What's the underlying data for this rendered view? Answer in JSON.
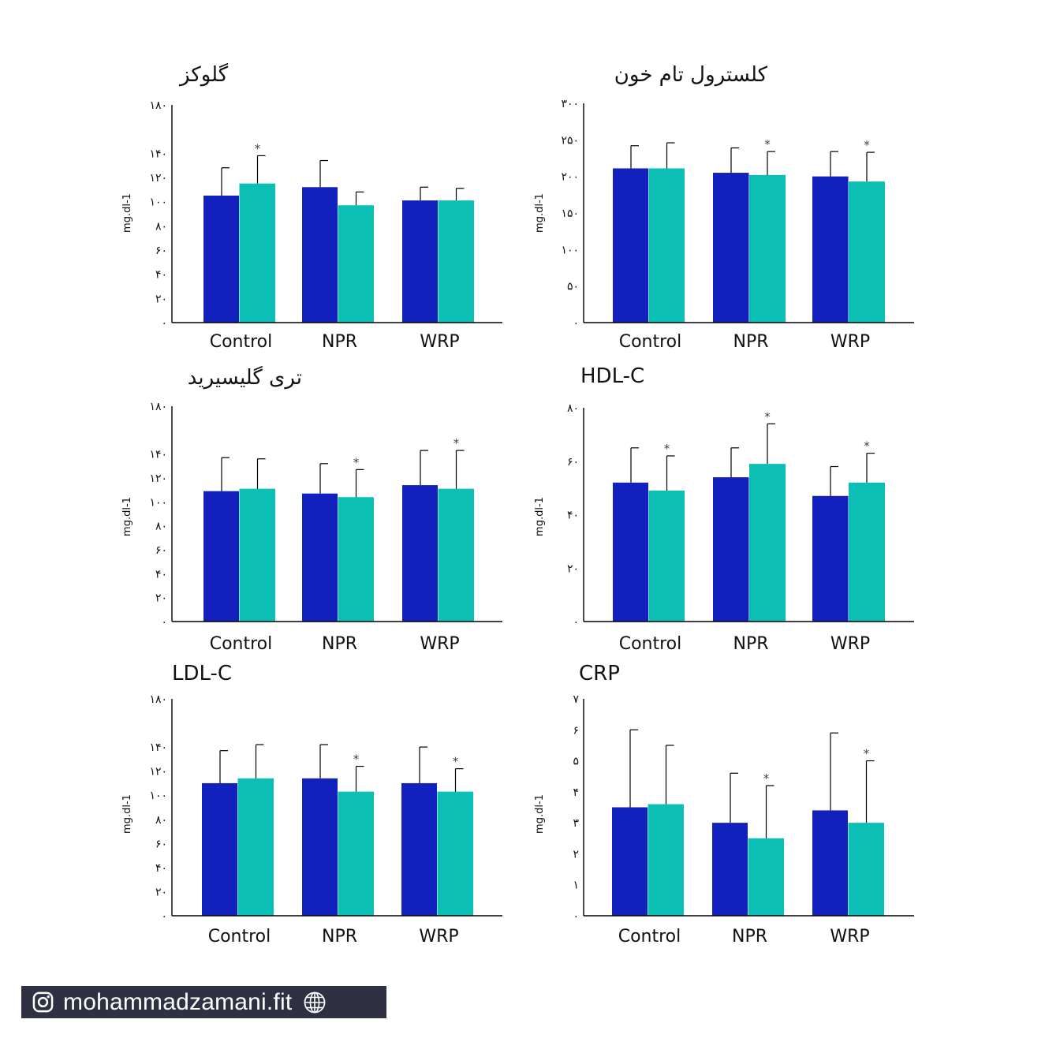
{
  "colors": {
    "pre": "#1220bd",
    "post": "#0bbfb4",
    "axis": "#000000",
    "errorbar": "#000000"
  },
  "chart_data": [
    {
      "type": "bar",
      "title": "گلوکز",
      "ylabel": "mg.dl-1",
      "categories": [
        "Control",
        "NPR",
        "WRP"
      ],
      "ylim": [
        0,
        180
      ],
      "yticks": [
        0,
        20,
        40,
        60,
        80,
        100,
        120,
        140,
        180
      ],
      "ytick_labels": [
        "۰",
        "۲۰",
        "۴۰",
        "۶۰",
        "۸۰",
        "۱۰۰",
        "۱۲۰",
        "۱۴۰",
        "۱۸۰"
      ],
      "series": [
        {
          "values": [
            105,
            112,
            101
          ],
          "errors": [
            23,
            22,
            11
          ],
          "significant": [
            false,
            false,
            false
          ]
        },
        {
          "values": [
            115,
            97,
            101
          ],
          "errors": [
            23,
            11,
            10
          ],
          "significant": [
            true,
            false,
            false
          ]
        }
      ]
    },
    {
      "type": "bar",
      "title": "کلسترول تام خون",
      "ylabel": "mg.dl-1",
      "categories": [
        "Control",
        "NPR",
        "WRP"
      ],
      "ylim": [
        0,
        300
      ],
      "yticks": [
        0,
        50,
        100,
        150,
        200,
        250,
        300
      ],
      "ytick_labels": [
        "۰",
        "۵۰",
        "۱۰۰",
        "۱۵۰",
        "۲۰۰",
        "۲۵۰",
        "۳۰۰"
      ],
      "series": [
        {
          "values": [
            211,
            205,
            200
          ],
          "errors": [
            31,
            34,
            34
          ],
          "significant": [
            false,
            false,
            false
          ]
        },
        {
          "values": [
            211,
            202,
            193
          ],
          "errors": [
            35,
            32,
            40
          ],
          "significant": [
            false,
            true,
            true
          ]
        }
      ]
    },
    {
      "type": "bar",
      "title": "تری گلیسیرید",
      "ylabel": "mg.dl-1",
      "categories": [
        "Control",
        "NPR",
        "WRP"
      ],
      "ylim": [
        0,
        180
      ],
      "yticks": [
        0,
        20,
        40,
        60,
        80,
        100,
        120,
        140,
        180
      ],
      "ytick_labels": [
        "۰",
        "۲۰",
        "۴۰",
        "۶۰",
        "۸۰",
        "۱۰۰",
        "۱۲۰",
        "۱۴۰",
        "۱۸۰"
      ],
      "series": [
        {
          "values": [
            109,
            107,
            114
          ],
          "errors": [
            28,
            25,
            29
          ],
          "significant": [
            false,
            false,
            false
          ]
        },
        {
          "values": [
            111,
            104,
            111
          ],
          "errors": [
            25,
            23,
            32
          ],
          "significant": [
            false,
            true,
            true
          ]
        }
      ]
    },
    {
      "type": "bar",
      "title": "HDL-C",
      "ylabel": "mg.dl-1",
      "categories": [
        "Control",
        "NPR",
        "WRP"
      ],
      "ylim": [
        0,
        80
      ],
      "yticks": [
        0,
        20,
        40,
        60,
        80
      ],
      "ytick_labels": [
        "۰",
        "۲۰",
        "۴۰",
        "۶۰",
        "۸۰"
      ],
      "series": [
        {
          "values": [
            52,
            54,
            47
          ],
          "errors": [
            13,
            11,
            11
          ],
          "significant": [
            false,
            false,
            false
          ]
        },
        {
          "values": [
            49,
            59,
            52
          ],
          "errors": [
            13,
            15,
            11
          ],
          "significant": [
            true,
            true,
            true
          ]
        }
      ]
    },
    {
      "type": "bar",
      "title": "LDL-C",
      "ylabel": "mg.dl-1",
      "categories": [
        "Control",
        "NPR",
        "WRP"
      ],
      "ylim": [
        0,
        180
      ],
      "yticks": [
        0,
        20,
        40,
        60,
        80,
        100,
        120,
        140,
        180
      ],
      "ytick_labels": [
        "۰",
        "۲۰",
        "۴۰",
        "۶۰",
        "۸۰",
        "۱۰۰",
        "۱۲۰",
        "۱۴۰",
        "۱۸۰"
      ],
      "series": [
        {
          "values": [
            110,
            114,
            110
          ],
          "errors": [
            27,
            28,
            30
          ],
          "significant": [
            false,
            false,
            false
          ]
        },
        {
          "values": [
            114,
            103,
            103
          ],
          "errors": [
            28,
            21,
            19
          ],
          "significant": [
            false,
            true,
            true
          ]
        }
      ]
    },
    {
      "type": "bar",
      "title": "CRP",
      "ylabel": "mg.dl-1",
      "categories": [
        "Control",
        "NPR",
        "WRP"
      ],
      "ylim": [
        0,
        7
      ],
      "yticks": [
        0,
        1,
        2,
        3,
        4,
        5,
        6,
        7
      ],
      "ytick_labels": [
        "۰",
        "۱",
        "۲",
        "۳",
        "۴",
        "۵",
        "۶",
        "۷"
      ],
      "series": [
        {
          "values": [
            3.5,
            3.0,
            3.4
          ],
          "errors": [
            2.5,
            1.6,
            2.5
          ],
          "significant": [
            false,
            false,
            false
          ]
        },
        {
          "values": [
            3.6,
            2.5,
            3.0
          ],
          "errors": [
            1.9,
            1.7,
            2.0
          ],
          "significant": [
            false,
            true,
            true
          ]
        }
      ]
    }
  ],
  "footer": {
    "handle": "mohammadzamani.fit",
    "left_icon": "instagram-icon",
    "right_icon": "globe-icon"
  }
}
